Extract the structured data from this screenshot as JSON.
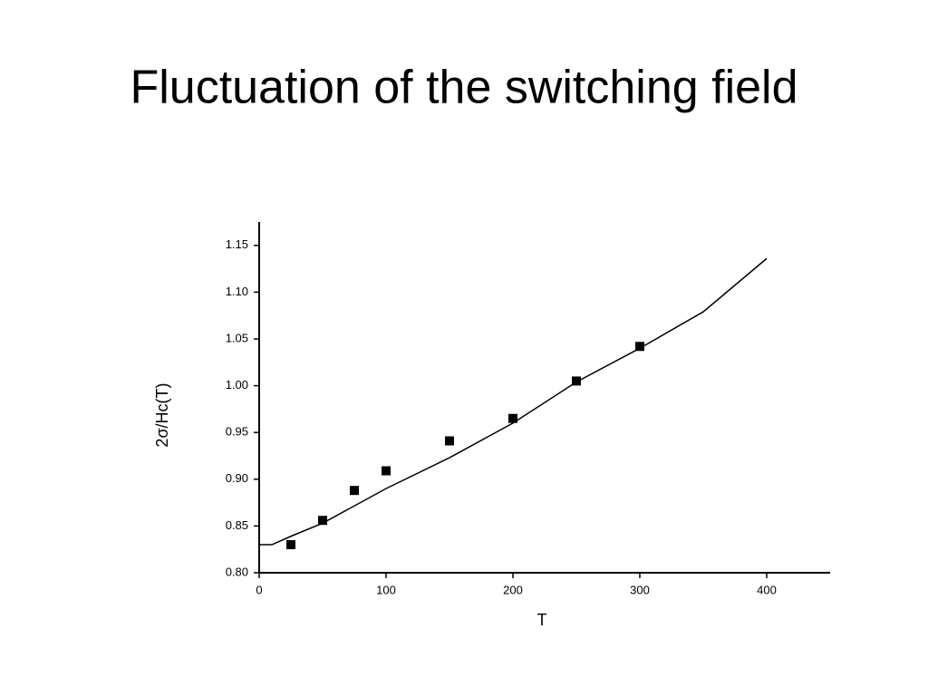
{
  "chart_data": {
    "type": "scatter",
    "title": "Fluctuation of the switching field",
    "x_label": "T",
    "y_label": "2σ/Hc(T)",
    "xlim": [
      0,
      450
    ],
    "xticks": [
      0,
      100,
      200,
      300,
      400
    ],
    "ylim": [
      0.8,
      1.175
    ],
    "yticks": [
      {
        "value": 0.8,
        "label": "0.80"
      },
      {
        "value": 0.85,
        "label": "0.85"
      },
      {
        "value": 0.9,
        "label": "0.90"
      },
      {
        "value": 0.95,
        "label": "0.95"
      },
      {
        "value": 1.0,
        "label": "1.00"
      },
      {
        "value": 1.05,
        "label": "1.05"
      },
      {
        "value": 1.1,
        "label": "1.10"
      },
      {
        "value": 1.15,
        "label": "1.15"
      }
    ],
    "series": [
      {
        "style": "markers",
        "color": "#000000",
        "x": [
          25,
          50,
          75,
          100,
          150,
          200,
          250,
          300
        ],
        "values": [
          0.83,
          0.856,
          0.888,
          0.909,
          0.941,
          0.965,
          1.005,
          1.042
        ]
      },
      {
        "style": "line",
        "color": "#000000",
        "x": [
          0,
          10,
          25,
          50,
          100,
          150,
          200,
          250,
          300,
          350,
          400
        ],
        "values": [
          0.83,
          0.83,
          0.839,
          0.853,
          0.89,
          0.923,
          0.96,
          1.004,
          1.04,
          1.079,
          1.136
        ]
      }
    ]
  }
}
